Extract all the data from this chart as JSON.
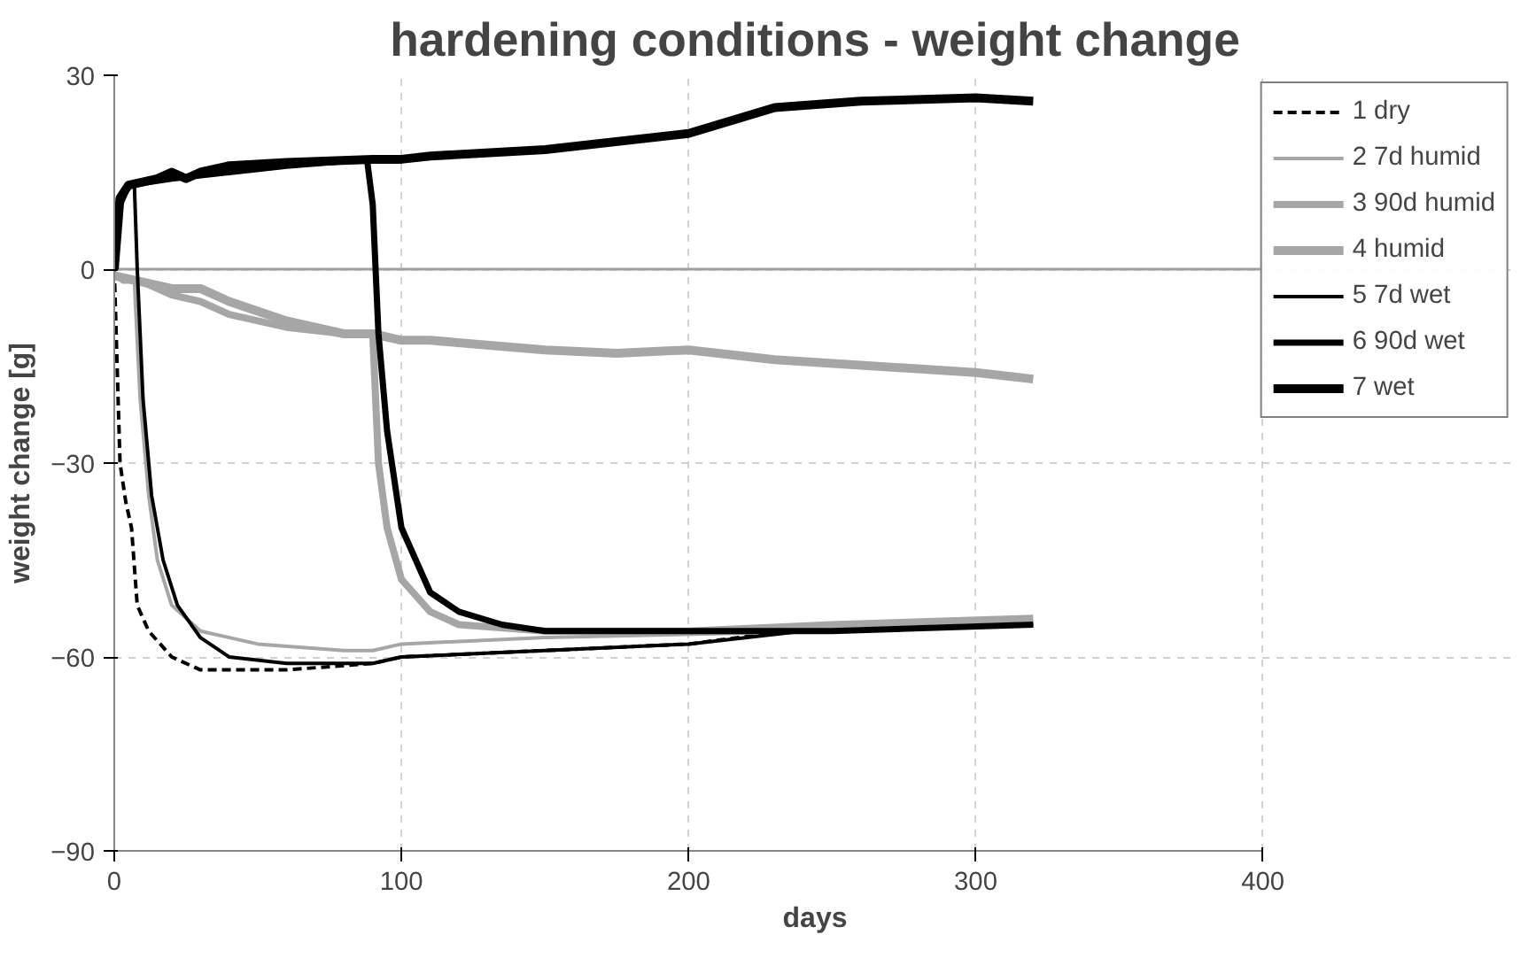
{
  "chart_data": {
    "type": "line",
    "title": "hardening conditions - weight change",
    "xlabel": "days",
    "ylabel": "weight change [g]",
    "xlim": [
      0,
      400
    ],
    "xticks": [
      0,
      100,
      200,
      300,
      400
    ],
    "ylim": [
      -90,
      30
    ],
    "yticks": [
      -90,
      -60,
      -30,
      0,
      30
    ],
    "grid": true,
    "legend": "right",
    "ref_lines": [
      {
        "axis": "y",
        "value": 0,
        "color": "#a0a0a0"
      }
    ],
    "series": [
      {
        "name": "1 dry",
        "color": "#000000",
        "line_style": "dashed",
        "x": [
          0,
          2,
          4,
          6,
          8,
          12,
          20,
          30,
          60,
          90,
          100,
          150,
          200,
          235
        ],
        "values": [
          0,
          -30,
          -36,
          -40,
          -52,
          -56,
          -60,
          -62,
          -62,
          -61,
          -60,
          -59,
          -58,
          -56
        ]
      },
      {
        "name": "2 7d humid",
        "color": "#a6a6a6",
        "x": [
          0,
          3,
          7,
          9,
          12,
          15,
          20,
          30,
          50,
          80,
          90,
          100,
          150,
          250,
          320
        ],
        "values": [
          -1,
          -2,
          -2,
          -20,
          -35,
          -45,
          -52,
          -56,
          -58,
          -59,
          -59,
          -58,
          -57,
          -56,
          -55
        ]
      },
      {
        "name": "3 90d humid",
        "color": "#a6a6a6",
        "x": [
          0,
          10,
          20,
          30,
          40,
          60,
          80,
          90,
          92,
          95,
          100,
          110,
          120,
          150,
          200,
          250,
          320
        ],
        "values": [
          -1,
          -2,
          -4,
          -5,
          -7,
          -9,
          -10,
          -10,
          -30,
          -40,
          -48,
          -53,
          -55,
          -56,
          -56,
          -55,
          -54
        ]
      },
      {
        "name": "4 humid",
        "color": "#a6a6a6",
        "x": [
          0,
          10,
          20,
          30,
          40,
          60,
          80,
          90,
          100,
          110,
          150,
          175,
          200,
          230,
          300,
          320
        ],
        "values": [
          -1,
          -2,
          -3,
          -3,
          -5,
          -8,
          -10,
          -10,
          -11,
          -11,
          -12.5,
          -13,
          -12.5,
          -14,
          -16,
          -17
        ]
      },
      {
        "name": "5 7d wet",
        "color": "#000000",
        "x": [
          0,
          2,
          5,
          7,
          8,
          10,
          13,
          17,
          22,
          30,
          40,
          60,
          90,
          100,
          150,
          200,
          240,
          320
        ],
        "values": [
          0,
          10,
          13,
          13,
          0,
          -20,
          -35,
          -45,
          -52,
          -57,
          -60,
          -61,
          -61,
          -60,
          -59,
          -58,
          -56,
          -55
        ]
      },
      {
        "name": "6 90d wet",
        "color": "#000000",
        "x": [
          0,
          2,
          5,
          20,
          40,
          60,
          88,
          90,
          92,
          95,
          100,
          110,
          120,
          135,
          150,
          200,
          250,
          320
        ],
        "values": [
          0,
          10,
          13,
          14,
          15,
          16,
          17,
          10,
          -10,
          -25,
          -40,
          -50,
          -53,
          -55,
          -56,
          -56,
          -56,
          -55
        ]
      },
      {
        "name": "7 wet",
        "color": "#000000",
        "x": [
          0,
          2,
          5,
          15,
          20,
          25,
          30,
          40,
          60,
          90,
          100,
          110,
          150,
          200,
          230,
          260,
          300,
          320
        ],
        "values": [
          0,
          11,
          13,
          14,
          15,
          14,
          15,
          16,
          16.5,
          17,
          17,
          17.5,
          18.5,
          21,
          25,
          26,
          26.5,
          26
        ]
      }
    ]
  }
}
